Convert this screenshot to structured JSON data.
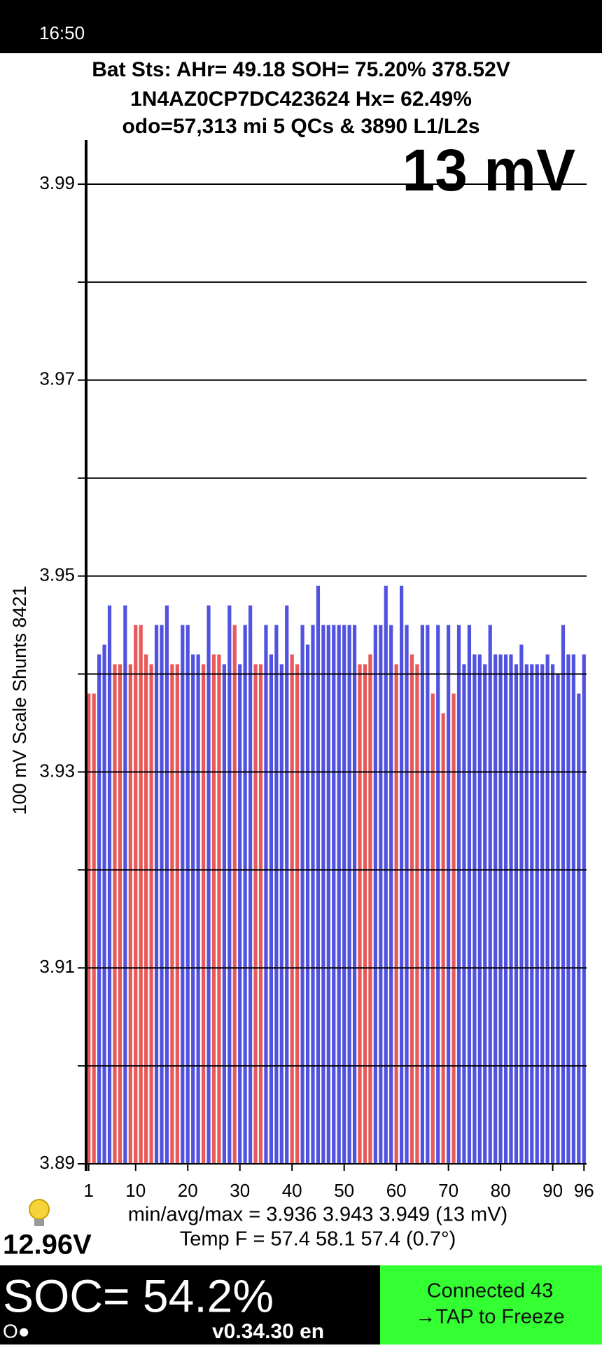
{
  "status_bar": {
    "time": "16:50"
  },
  "header": {
    "line1": "Bat Sts: AHr= 49.18 SOH= 75.20% 378.52V",
    "line2": "1N4AZ0CP7DC423624   Hx= 62.49%",
    "line3": "odo=57,313 mi  5 QCs & 3890 L1/L2s"
  },
  "chart_data": {
    "type": "bar",
    "annotation": "13 mV",
    "ylabel": "100 mV Scale   Shunts 8421",
    "ylim": [
      3.89,
      3.99
    ],
    "yticks": [
      3.89,
      3.91,
      3.93,
      3.95,
      3.97,
      3.99
    ],
    "grid_lines": [
      3.89,
      3.9,
      3.91,
      3.92,
      3.93,
      3.94,
      3.95,
      3.96,
      3.97,
      3.98,
      3.99
    ],
    "xticks": [
      1,
      10,
      20,
      30,
      40,
      50,
      60,
      70,
      80,
      90,
      96
    ],
    "categories": [
      1,
      2,
      3,
      4,
      5,
      6,
      7,
      8,
      9,
      10,
      11,
      12,
      13,
      14,
      15,
      16,
      17,
      18,
      19,
      20,
      21,
      22,
      23,
      24,
      25,
      26,
      27,
      28,
      29,
      30,
      31,
      32,
      33,
      34,
      35,
      36,
      37,
      38,
      39,
      40,
      41,
      42,
      43,
      44,
      45,
      46,
      47,
      48,
      49,
      50,
      51,
      52,
      53,
      54,
      55,
      56,
      57,
      58,
      59,
      60,
      61,
      62,
      63,
      64,
      65,
      66,
      67,
      68,
      69,
      70,
      71,
      72,
      73,
      74,
      75,
      76,
      77,
      78,
      79,
      80,
      81,
      82,
      83,
      84,
      85,
      86,
      87,
      88,
      89,
      90,
      91,
      92,
      93,
      94,
      95,
      96
    ],
    "values": [
      3.938,
      3.938,
      3.942,
      3.943,
      3.947,
      3.941,
      3.941,
      3.947,
      3.941,
      3.945,
      3.945,
      3.942,
      3.941,
      3.945,
      3.945,
      3.947,
      3.941,
      3.941,
      3.945,
      3.945,
      3.942,
      3.942,
      3.941,
      3.947,
      3.942,
      3.942,
      3.941,
      3.947,
      3.945,
      3.941,
      3.945,
      3.947,
      3.941,
      3.941,
      3.945,
      3.942,
      3.945,
      3.941,
      3.947,
      3.942,
      3.941,
      3.945,
      3.943,
      3.945,
      3.949,
      3.945,
      3.945,
      3.945,
      3.945,
      3.945,
      3.945,
      3.945,
      3.941,
      3.941,
      3.942,
      3.945,
      3.945,
      3.949,
      3.945,
      3.941,
      3.949,
      3.945,
      3.942,
      3.941,
      3.945,
      3.945,
      3.938,
      3.945,
      3.936,
      3.945,
      3.938,
      3.945,
      3.941,
      3.945,
      3.942,
      3.942,
      3.941,
      3.945,
      3.942,
      3.942,
      3.942,
      3.942,
      3.941,
      3.943,
      3.941,
      3.941,
      3.941,
      3.941,
      3.942,
      3.941,
      3.94,
      3.945,
      3.942,
      3.942,
      3.938,
      3.942
    ],
    "colors": [
      "#e85a5a",
      "#e85a5a",
      "#5252e0",
      "#5252e0",
      "#5252e0",
      "#e85a5a",
      "#e85a5a",
      "#5252e0",
      "#e85a5a",
      "#e85a5a",
      "#e85a5a",
      "#e85a5a",
      "#e85a5a",
      "#5252e0",
      "#5252e0",
      "#5252e0",
      "#e85a5a",
      "#e85a5a",
      "#5252e0",
      "#5252e0",
      "#5252e0",
      "#5252e0",
      "#e85a5a",
      "#5252e0",
      "#e85a5a",
      "#e85a5a",
      "#5252e0",
      "#5252e0",
      "#e85a5a",
      "#5252e0",
      "#5252e0",
      "#5252e0",
      "#e85a5a",
      "#e85a5a",
      "#5252e0",
      "#5252e0",
      "#5252e0",
      "#5252e0",
      "#5252e0",
      "#e85a5a",
      "#e85a5a",
      "#5252e0",
      "#5252e0",
      "#5252e0",
      "#5252e0",
      "#5252e0",
      "#5252e0",
      "#5252e0",
      "#5252e0",
      "#5252e0",
      "#5252e0",
      "#5252e0",
      "#e85a5a",
      "#e85a5a",
      "#e85a5a",
      "#5252e0",
      "#5252e0",
      "#5252e0",
      "#5252e0",
      "#e85a5a",
      "#5252e0",
      "#5252e0",
      "#e85a5a",
      "#e85a5a",
      "#5252e0",
      "#5252e0",
      "#e85a5a",
      "#5252e0",
      "#e85a5a",
      "#5252e0",
      "#e85a5a",
      "#5252e0",
      "#5252e0",
      "#5252e0",
      "#5252e0",
      "#5252e0",
      "#5252e0",
      "#5252e0",
      "#5252e0",
      "#5252e0",
      "#5252e0",
      "#5252e0",
      "#5252e0",
      "#5252e0",
      "#5252e0",
      "#5252e0",
      "#5252e0",
      "#5252e0",
      "#5252e0",
      "#5252e0",
      "#5252e0",
      "#5252e0",
      "#5252e0",
      "#5252e0",
      "#5252e0",
      "#5252e0"
    ]
  },
  "stats": {
    "minavgmax": "min/avg/max = 3.936 3.943 3.949  (13 mV)",
    "temp": "Temp F = 57.4  58.1  57.4  (0.7°)",
    "aux_voltage": "12.96V"
  },
  "footer": {
    "soc": "SOC= 54.2%",
    "indicator": "O●",
    "version": "v0.34.30 en",
    "connected": "Connected 43",
    "action": "→TAP to Freeze"
  }
}
